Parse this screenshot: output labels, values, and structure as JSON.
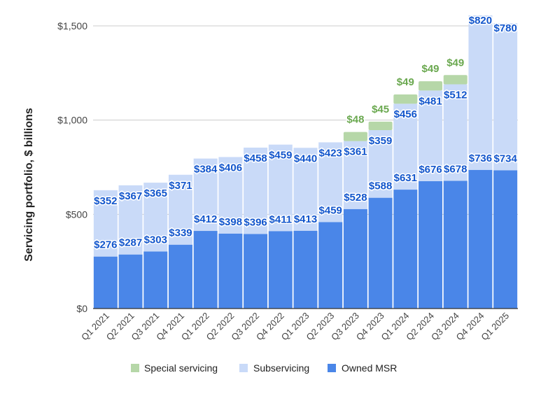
{
  "chart_data": {
    "type": "bar",
    "stacked": true,
    "title": "",
    "xlabel": "",
    "ylabel": "Servicing portfolio, $ billions",
    "ylim": [
      0,
      1500
    ],
    "yticks": [
      0,
      500,
      1000,
      1500
    ],
    "ytick_labels": [
      "$0",
      "$500",
      "$1,000",
      "$1,500"
    ],
    "grid": true,
    "legend_position": "bottom",
    "categories": [
      "Q1 2021",
      "Q2 2021",
      "Q3 2021",
      "Q4 2021",
      "Q1 2022",
      "Q2 2022",
      "Q3 2022",
      "Q4 2022",
      "Q1 2023",
      "Q2 2023",
      "Q3 2023",
      "Q4 2023",
      "Q1 2024",
      "Q2 2024",
      "Q3 2024",
      "Q4 2024",
      "Q1 2025"
    ],
    "series": [
      {
        "name": "Owned MSR",
        "color": "#4a86e8",
        "label_color": "#1155cc",
        "values": [
          276,
          287,
          303,
          339,
          412,
          398,
          396,
          411,
          413,
          459,
          528,
          588,
          631,
          676,
          678,
          736,
          734
        ],
        "labels": [
          "$276",
          "$287",
          "$303",
          "$339",
          "$412",
          "$398",
          "$396",
          "$411",
          "$413",
          "$459",
          "$528",
          "$588",
          "$631",
          "$676",
          "$678",
          "$736",
          "$734"
        ]
      },
      {
        "name": "Subservicing",
        "color": "#c9daf8",
        "label_color": "#1155cc",
        "values": [
          352,
          367,
          365,
          371,
          384,
          406,
          458,
          459,
          440,
          423,
          361,
          359,
          456,
          481,
          512,
          820,
          780
        ],
        "labels": [
          "$352",
          "$367",
          "$365",
          "$371",
          "$384",
          "$406",
          "$458",
          "$459",
          "$440",
          "$423",
          "$361",
          "$359",
          "$456",
          "$481",
          "$512",
          "$820",
          "$780"
        ]
      },
      {
        "name": "Special servicing",
        "color": "#b6d7a8",
        "label_color": "#6aa84f",
        "values": [
          null,
          null,
          null,
          null,
          null,
          null,
          null,
          null,
          null,
          null,
          48,
          45,
          49,
          49,
          49,
          null,
          null
        ],
        "labels": [
          "",
          "",
          "",
          "",
          "",
          "",
          "",
          "",
          "",
          "",
          "$48",
          "$45",
          "$49",
          "$49",
          "$49",
          "",
          ""
        ]
      }
    ],
    "legend": [
      "Special servicing",
      "Subservicing",
      "Owned MSR"
    ]
  }
}
